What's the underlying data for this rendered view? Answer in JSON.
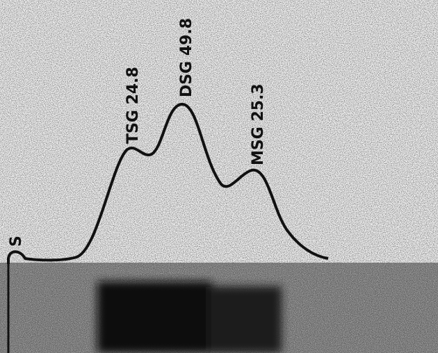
{
  "labels": {
    "s": "S",
    "tsg": "TSG 24.8",
    "dsg": "DSG 49.8",
    "msg": "MSG 25.3"
  }
}
